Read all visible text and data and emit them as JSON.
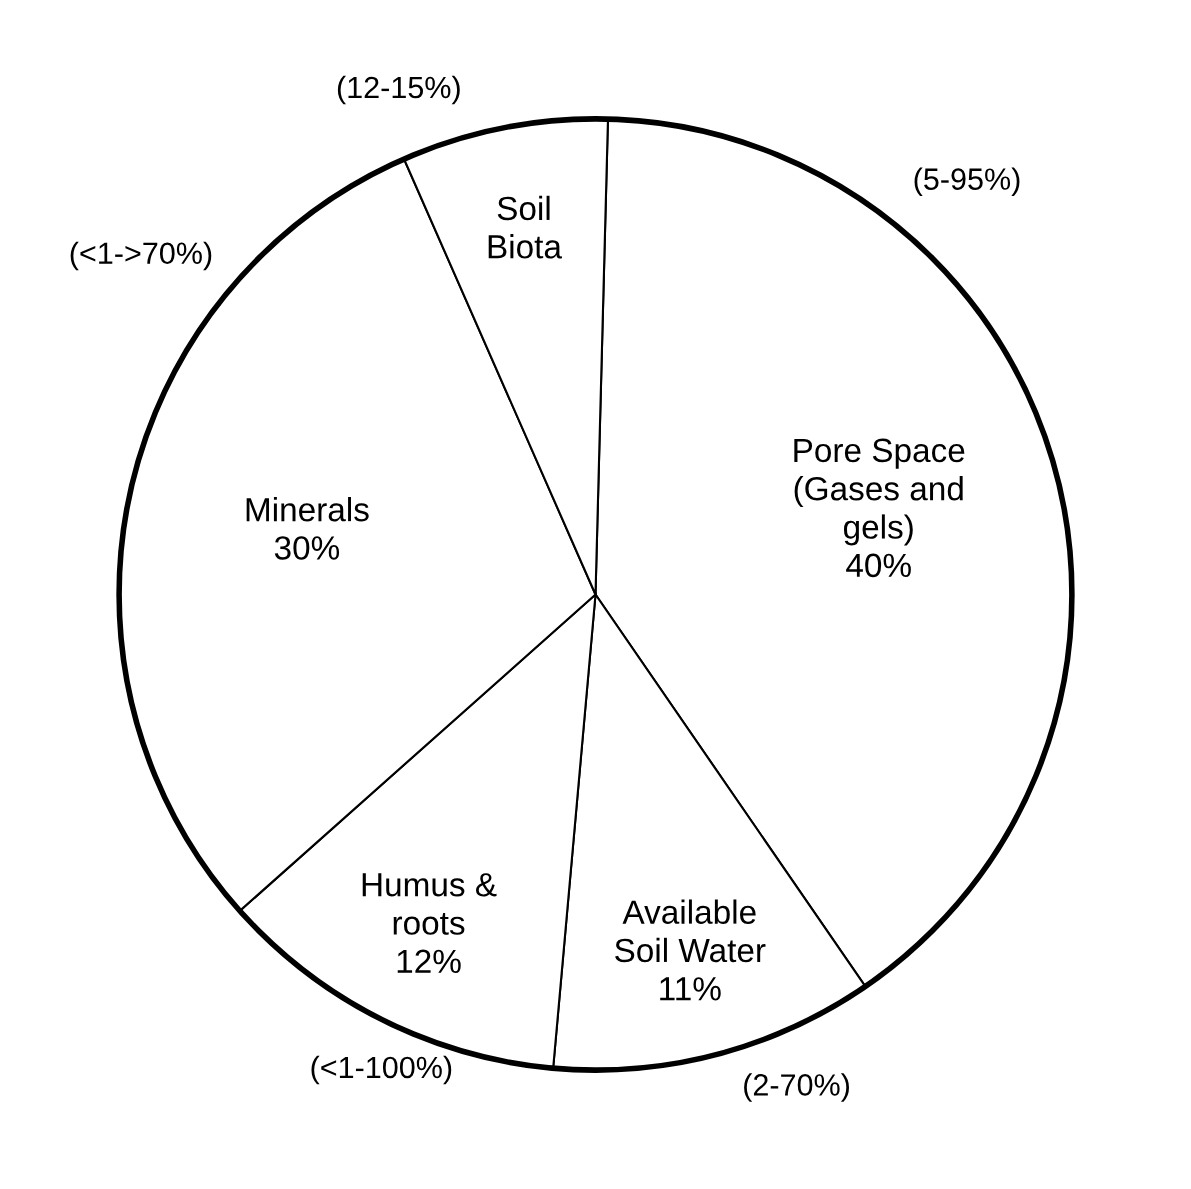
{
  "chart_data": {
    "type": "pie",
    "categories": [
      "Pore Space\n(Gases and\ngels)",
      "Available\nSoil Water",
      "Humus &\nroots",
      "Minerals",
      "Soil\nBiota"
    ],
    "values": [
      40,
      11,
      12,
      30,
      7
    ],
    "value_labels": [
      "40%",
      "11%",
      "12%",
      "30%",
      null
    ],
    "colors": [
      "#ffffff",
      "#ffffff",
      "#ffffff",
      "#ffffff",
      "#ffffff"
    ],
    "annotations": [
      "(5-95%)",
      "(2-70%)",
      "(<1-100%)",
      "(<1->70%)",
      "(12-15%)"
    ]
  }
}
